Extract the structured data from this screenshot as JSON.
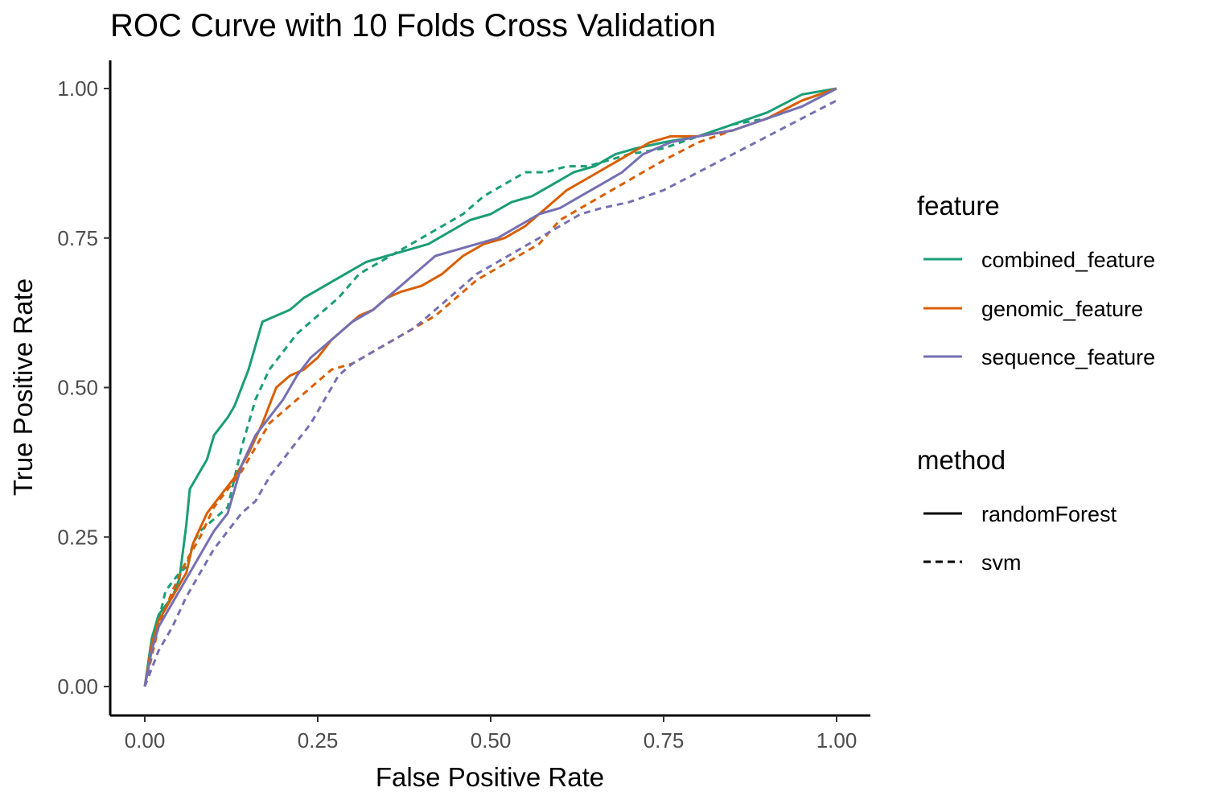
{
  "chart_data": {
    "type": "line",
    "title": "ROC Curve with 10 Folds Cross Validation",
    "xlabel": "False Positive Rate",
    "ylabel": "True Positive Rate",
    "xlim": [
      0,
      1
    ],
    "ylim": [
      0,
      1
    ],
    "x_ticks": [
      "0.00",
      "0.25",
      "0.50",
      "0.75",
      "1.00"
    ],
    "y_ticks": [
      "0.00",
      "0.25",
      "0.50",
      "0.75",
      "1.00"
    ],
    "grid": false,
    "legend": {
      "placement": "right",
      "feature_title": "feature",
      "feature_items": [
        {
          "label": "combined_feature",
          "color": "#1b9e77"
        },
        {
          "label": "genomic_feature",
          "color": "#d95f02"
        },
        {
          "label": "sequence_feature",
          "color": "#7570b3"
        }
      ],
      "method_title": "method",
      "method_items": [
        {
          "label": "randomForest",
          "linetype": "solid"
        },
        {
          "label": "svm",
          "linetype": "dashed"
        }
      ]
    },
    "series": [
      {
        "feature": "combined_feature",
        "method": "randomForest",
        "color": "#1b9e77",
        "dash": false,
        "x": [
          0,
          0.01,
          0.02,
          0.04,
          0.05,
          0.06,
          0.065,
          0.07,
          0.09,
          0.1,
          0.12,
          0.13,
          0.15,
          0.17,
          0.19,
          0.21,
          0.23,
          0.26,
          0.29,
          0.32,
          0.35,
          0.38,
          0.41,
          0.44,
          0.47,
          0.5,
          0.53,
          0.56,
          0.59,
          0.62,
          0.65,
          0.68,
          0.71,
          0.75,
          0.8,
          0.85,
          0.9,
          0.95,
          1.0
        ],
        "y": [
          0,
          0.08,
          0.12,
          0.15,
          0.18,
          0.27,
          0.33,
          0.34,
          0.38,
          0.42,
          0.45,
          0.47,
          0.53,
          0.61,
          0.62,
          0.63,
          0.65,
          0.67,
          0.69,
          0.71,
          0.72,
          0.73,
          0.74,
          0.76,
          0.78,
          0.79,
          0.81,
          0.82,
          0.84,
          0.86,
          0.87,
          0.89,
          0.9,
          0.91,
          0.92,
          0.94,
          0.96,
          0.99,
          1.0
        ]
      },
      {
        "feature": "combined_feature",
        "method": "svm",
        "color": "#1b9e77",
        "dash": true,
        "x": [
          0,
          0.01,
          0.02,
          0.03,
          0.05,
          0.06,
          0.07,
          0.08,
          0.1,
          0.12,
          0.14,
          0.16,
          0.18,
          0.2,
          0.22,
          0.25,
          0.28,
          0.31,
          0.34,
          0.37,
          0.4,
          0.43,
          0.46,
          0.49,
          0.52,
          0.55,
          0.58,
          0.61,
          0.64,
          0.67,
          0.7,
          0.75,
          0.8,
          0.85,
          0.9,
          0.95,
          1.0
        ],
        "y": [
          0,
          0.06,
          0.11,
          0.16,
          0.19,
          0.2,
          0.24,
          0.26,
          0.28,
          0.3,
          0.4,
          0.48,
          0.53,
          0.56,
          0.59,
          0.62,
          0.65,
          0.69,
          0.71,
          0.73,
          0.75,
          0.77,
          0.79,
          0.82,
          0.84,
          0.86,
          0.86,
          0.87,
          0.87,
          0.88,
          0.89,
          0.9,
          0.92,
          0.94,
          0.95,
          0.97,
          1.0
        ]
      },
      {
        "feature": "genomic_feature",
        "method": "randomForest",
        "color": "#d95f02",
        "dash": false,
        "x": [
          0,
          0.01,
          0.02,
          0.04,
          0.06,
          0.07,
          0.09,
          0.11,
          0.13,
          0.15,
          0.17,
          0.19,
          0.21,
          0.23,
          0.25,
          0.27,
          0.29,
          0.31,
          0.33,
          0.35,
          0.37,
          0.4,
          0.43,
          0.46,
          0.49,
          0.52,
          0.55,
          0.58,
          0.61,
          0.64,
          0.67,
          0.7,
          0.73,
          0.76,
          0.8,
          0.85,
          0.9,
          0.95,
          1.0
        ],
        "y": [
          0,
          0.07,
          0.11,
          0.15,
          0.19,
          0.24,
          0.29,
          0.32,
          0.35,
          0.39,
          0.44,
          0.5,
          0.52,
          0.53,
          0.55,
          0.58,
          0.6,
          0.62,
          0.63,
          0.65,
          0.66,
          0.67,
          0.69,
          0.72,
          0.74,
          0.75,
          0.77,
          0.8,
          0.83,
          0.85,
          0.87,
          0.89,
          0.91,
          0.92,
          0.92,
          0.93,
          0.95,
          0.98,
          1.0
        ]
      },
      {
        "feature": "genomic_feature",
        "method": "svm",
        "color": "#d95f02",
        "dash": true,
        "x": [
          0,
          0.01,
          0.02,
          0.04,
          0.06,
          0.08,
          0.1,
          0.12,
          0.14,
          0.16,
          0.18,
          0.2,
          0.22,
          0.24,
          0.27,
          0.3,
          0.33,
          0.36,
          0.39,
          0.42,
          0.45,
          0.48,
          0.51,
          0.54,
          0.57,
          0.6,
          0.63,
          0.66,
          0.69,
          0.72,
          0.75,
          0.8,
          0.85,
          0.9,
          0.95,
          1.0
        ],
        "y": [
          0,
          0.05,
          0.1,
          0.16,
          0.21,
          0.25,
          0.3,
          0.33,
          0.36,
          0.4,
          0.44,
          0.46,
          0.48,
          0.5,
          0.53,
          0.54,
          0.56,
          0.58,
          0.6,
          0.62,
          0.65,
          0.68,
          0.7,
          0.72,
          0.74,
          0.78,
          0.8,
          0.82,
          0.84,
          0.86,
          0.88,
          0.91,
          0.93,
          0.95,
          0.98,
          1.0
        ]
      },
      {
        "feature": "sequence_feature",
        "method": "randomForest",
        "color": "#7570b3",
        "dash": false,
        "x": [
          0,
          0.01,
          0.02,
          0.04,
          0.06,
          0.08,
          0.1,
          0.12,
          0.14,
          0.16,
          0.18,
          0.2,
          0.22,
          0.24,
          0.27,
          0.3,
          0.33,
          0.36,
          0.39,
          0.42,
          0.45,
          0.48,
          0.51,
          0.54,
          0.57,
          0.6,
          0.63,
          0.66,
          0.69,
          0.72,
          0.76,
          0.8,
          0.85,
          0.9,
          0.95,
          1.0
        ],
        "y": [
          0,
          0.06,
          0.1,
          0.14,
          0.18,
          0.22,
          0.26,
          0.29,
          0.37,
          0.42,
          0.45,
          0.48,
          0.52,
          0.55,
          0.58,
          0.61,
          0.63,
          0.66,
          0.69,
          0.72,
          0.73,
          0.74,
          0.75,
          0.77,
          0.79,
          0.8,
          0.82,
          0.84,
          0.86,
          0.89,
          0.91,
          0.92,
          0.93,
          0.95,
          0.97,
          1.0
        ]
      },
      {
        "feature": "sequence_feature",
        "method": "svm",
        "color": "#7570b3",
        "dash": true,
        "x": [
          0,
          0.02,
          0.04,
          0.06,
          0.08,
          0.1,
          0.12,
          0.14,
          0.16,
          0.18,
          0.2,
          0.22,
          0.24,
          0.26,
          0.28,
          0.3,
          0.33,
          0.36,
          0.39,
          0.42,
          0.45,
          0.48,
          0.51,
          0.54,
          0.57,
          0.6,
          0.63,
          0.66,
          0.7,
          0.75,
          0.8,
          0.85,
          0.9,
          0.95,
          1.0
        ],
        "y": [
          0,
          0.06,
          0.1,
          0.15,
          0.19,
          0.23,
          0.26,
          0.29,
          0.31,
          0.35,
          0.38,
          0.41,
          0.44,
          0.48,
          0.52,
          0.54,
          0.56,
          0.58,
          0.6,
          0.63,
          0.66,
          0.69,
          0.71,
          0.73,
          0.75,
          0.77,
          0.79,
          0.8,
          0.81,
          0.83,
          0.86,
          0.89,
          0.92,
          0.95,
          0.98
        ]
      }
    ]
  }
}
